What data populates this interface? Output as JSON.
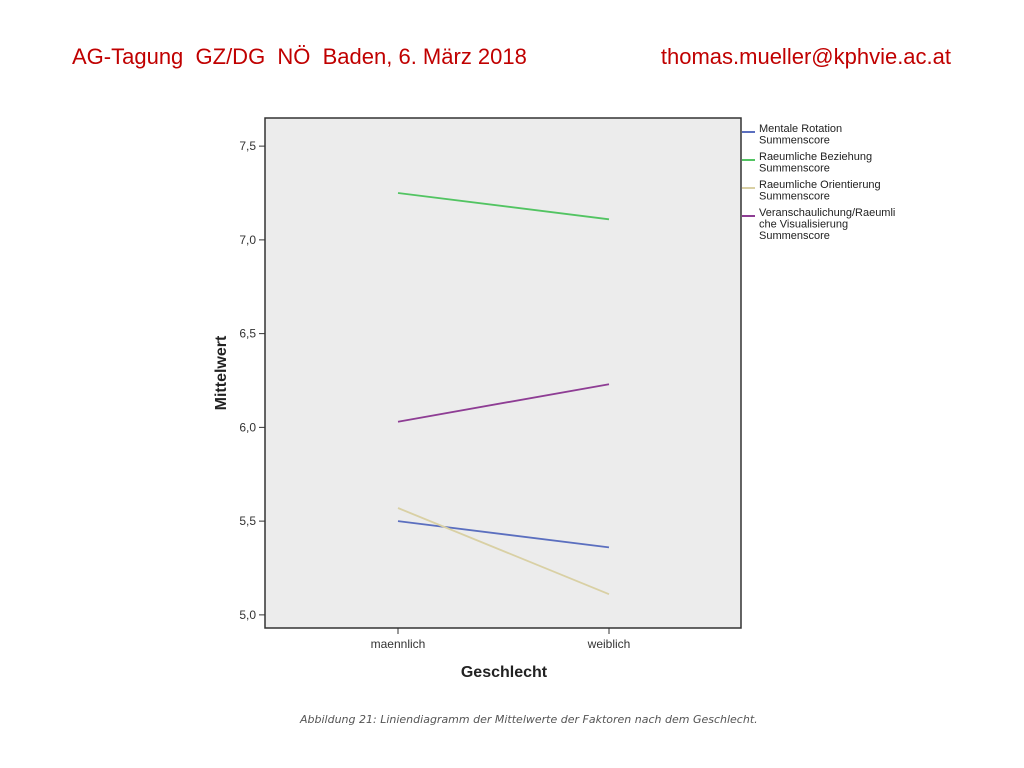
{
  "header": {
    "left": "AG-Tagung  GZ/DG  NÖ  Baden, 6. März 2018",
    "right": "thomas.mueller@kphvie.ac.at"
  },
  "caption": "Abbildung 21: Liniendiagramm der Mittelwerte der Faktoren nach dem Geschlecht.",
  "colors": {
    "plot_background": "#ececec",
    "axis": "#333333",
    "header_text": "#c00000"
  },
  "chart_data": {
    "type": "line",
    "title": "",
    "xlabel": "Geschlecht",
    "ylabel": "Mittelwert",
    "categories": [
      "maennlich",
      "weiblich"
    ],
    "ylim": [
      4.93,
      7.65
    ],
    "yticks": [
      5.0,
      5.5,
      6.0,
      6.5,
      7.0,
      7.5
    ],
    "ytick_labels": [
      "5,0",
      "5,5",
      "6,0",
      "6,5",
      "7,0",
      "7,5"
    ],
    "legend_position": "right-outside-top",
    "series": [
      {
        "name_lines": [
          "Mentale Rotation",
          "Summenscore"
        ],
        "color": "#5b6fbf",
        "values": [
          5.5,
          5.36
        ]
      },
      {
        "name_lines": [
          "Raeumliche Beziehung",
          "Summenscore"
        ],
        "color": "#52c462",
        "values": [
          7.25,
          7.11
        ]
      },
      {
        "name_lines": [
          "Raeumliche Orientierung",
          "Summenscore"
        ],
        "color": "#d9d0a4",
        "values": [
          5.57,
          5.11
        ]
      },
      {
        "name_lines": [
          "Veranschaulichung/Raeumli",
          "che Visualisierung",
          "Summenscore"
        ],
        "color": "#8e3d94",
        "values": [
          6.03,
          6.23
        ]
      }
    ]
  }
}
